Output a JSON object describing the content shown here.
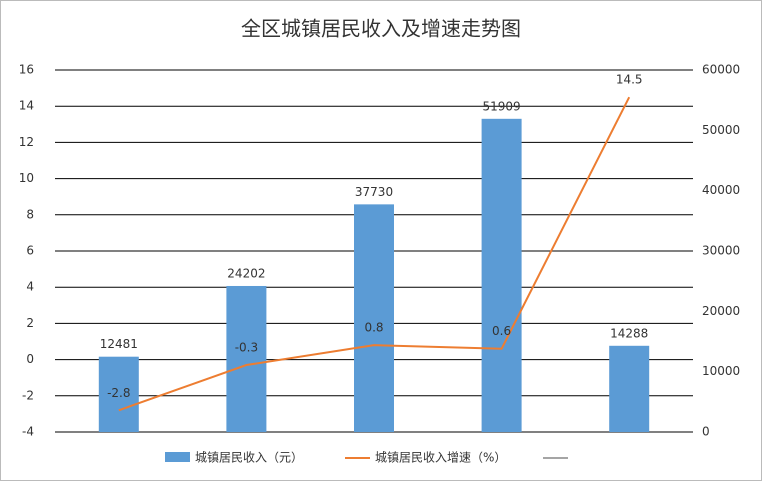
{
  "chart_data": {
    "type": "bar",
    "title": "全区城镇居民收入及增速走势图",
    "categories": [
      null,
      null,
      null,
      null,
      null
    ],
    "series": [
      {
        "name": "城镇居民收入（元）",
        "type": "bar",
        "axis": "y2",
        "color": "#5b9bd5",
        "values": [
          12481,
          24202,
          37730,
          51909,
          14288
        ]
      },
      {
        "name": "城镇居民收入增速（%）",
        "type": "line",
        "axis": "y",
        "color": "#ed7d31",
        "values": [
          -2.8,
          -0.3,
          0.8,
          0.6,
          14.5
        ]
      }
    ],
    "ylim": [
      -4,
      16
    ],
    "yticks": [
      -4,
      -2,
      0,
      2,
      4,
      6,
      8,
      10,
      12,
      14,
      16
    ],
    "y2lim": [
      0,
      60000
    ],
    "y2ticks": [
      0,
      10000,
      20000,
      30000,
      40000,
      50000,
      60000
    ],
    "grid": true,
    "legend": "bottom"
  }
}
